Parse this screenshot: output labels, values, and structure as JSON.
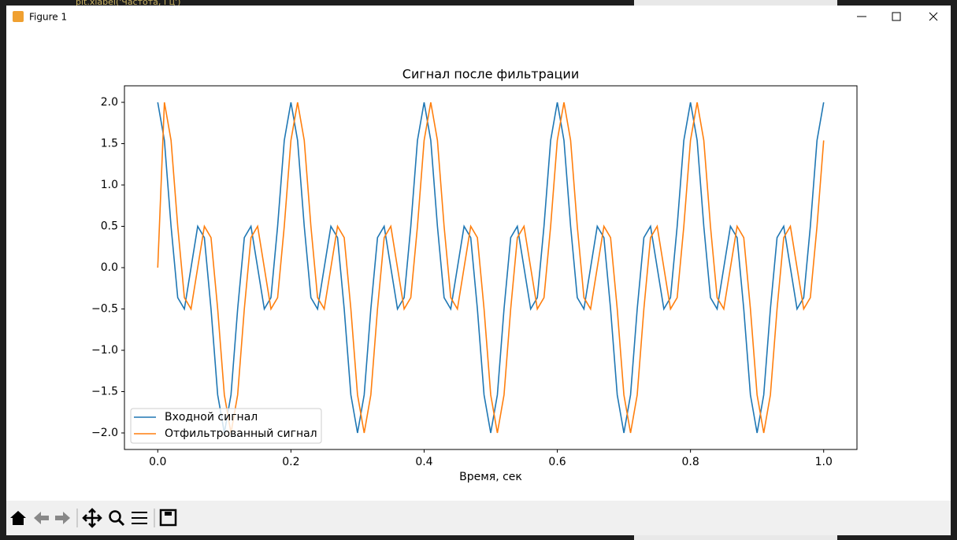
{
  "window": {
    "title": "Figure 1",
    "background_code": "plt.xlabel('Частота, Гц')"
  },
  "chart_data": {
    "type": "line",
    "title": "Сигнал после фильтрации",
    "x_label": "Время, сек",
    "x": [
      0,
      0.01,
      0.02,
      0.03,
      0.04,
      0.05,
      0.06,
      0.07,
      0.08,
      0.09,
      0.1,
      0.11,
      0.12,
      0.13,
      0.14,
      0.15,
      0.16,
      0.17,
      0.18,
      0.19,
      0.2,
      0.21,
      0.22,
      0.23,
      0.24,
      0.25,
      0.26,
      0.27,
      0.28,
      0.29,
      0.3,
      0.31,
      0.32,
      0.33,
      0.34,
      0.35,
      0.36,
      0.37,
      0.38,
      0.39,
      0.4,
      0.41,
      0.42,
      0.43,
      0.44,
      0.45,
      0.46,
      0.47,
      0.48,
      0.49,
      0.5,
      0.51,
      0.52,
      0.53,
      0.54,
      0.55,
      0.56,
      0.57,
      0.58,
      0.59,
      0.6,
      0.61,
      0.62,
      0.63,
      0.64,
      0.65,
      0.66,
      0.67,
      0.68,
      0.69,
      0.7,
      0.71,
      0.72,
      0.73,
      0.74,
      0.75,
      0.76,
      0.77,
      0.78,
      0.79,
      0.8,
      0.81,
      0.82,
      0.83,
      0.84,
      0.85,
      0.86,
      0.87,
      0.88,
      0.89,
      0.9,
      0.91,
      0.92,
      0.93,
      0.94,
      0.95,
      0.96,
      0.97,
      0.98,
      0.99,
      1
    ],
    "series": [
      {
        "name": "Входной сигнал",
        "color": "#1f77b4",
        "values": [
          2,
          1.539,
          0.5,
          -0.363,
          -0.5,
          0,
          0.5,
          0.363,
          -0.5,
          -1.539,
          -2,
          -1.539,
          -0.5,
          0.363,
          0.5,
          0,
          -0.5,
          -0.363,
          0.5,
          1.539,
          2,
          1.539,
          0.5,
          -0.363,
          -0.5,
          0,
          0.5,
          0.363,
          -0.5,
          -1.539,
          -2,
          -1.539,
          -0.5,
          0.363,
          0.5,
          0,
          -0.5,
          -0.363,
          0.5,
          1.539,
          2,
          1.539,
          0.5,
          -0.363,
          -0.5,
          0,
          0.5,
          0.363,
          -0.5,
          -1.539,
          -2,
          -1.539,
          -0.5,
          0.363,
          0.5,
          0,
          -0.5,
          -0.363,
          0.5,
          1.539,
          2,
          1.539,
          0.5,
          -0.363,
          -0.5,
          0,
          0.5,
          0.363,
          -0.5,
          -1.539,
          -2,
          -1.539,
          -0.5,
          0.363,
          0.5,
          0,
          -0.5,
          -0.363,
          0.5,
          1.539,
          2,
          1.539,
          0.5,
          -0.363,
          -0.5,
          0,
          0.5,
          0.363,
          -0.5,
          -1.539,
          -2,
          -1.539,
          -0.5,
          0.363,
          0.5,
          0,
          -0.5,
          -0.363,
          0.5,
          1.539,
          2
        ]
      },
      {
        "name": "Отфильтрованный сигнал",
        "color": "#ff7f0e",
        "values": [
          0,
          2,
          1.539,
          0.5,
          -0.363,
          -0.5,
          0,
          0.5,
          0.363,
          -0.5,
          -1.539,
          -2,
          -1.539,
          -0.5,
          0.363,
          0.5,
          0,
          -0.5,
          -0.363,
          0.5,
          1.539,
          2,
          1.539,
          0.5,
          -0.363,
          -0.5,
          0,
          0.5,
          0.363,
          -0.5,
          -1.539,
          -2,
          -1.539,
          -0.5,
          0.363,
          0.5,
          0,
          -0.5,
          -0.363,
          0.5,
          1.539,
          2,
          1.539,
          0.5,
          -0.363,
          -0.5,
          0,
          0.5,
          0.363,
          -0.5,
          -1.539,
          -2,
          -1.539,
          -0.5,
          0.363,
          0.5,
          0,
          -0.5,
          -0.363,
          0.5,
          1.539,
          2,
          1.539,
          0.5,
          -0.363,
          -0.5,
          0,
          0.5,
          0.363,
          -0.5,
          -1.539,
          -2,
          -1.539,
          -0.5,
          0.363,
          0.5,
          0,
          -0.5,
          -0.363,
          0.5,
          1.539,
          2,
          1.539,
          0.5,
          -0.363,
          -0.5,
          0,
          0.5,
          0.363,
          -0.5,
          -1.539,
          -2,
          -1.539,
          -0.5,
          0.363,
          0.5,
          0,
          -0.5,
          -0.363,
          0.5,
          1.539
        ]
      }
    ],
    "xlim": [
      -0.05,
      1.05
    ],
    "xticks": [
      {
        "value": 0,
        "label": "0.0"
      },
      {
        "value": 0.2,
        "label": "0.2"
      },
      {
        "value": 0.4,
        "label": "0.4"
      },
      {
        "value": 0.6,
        "label": "0.6"
      },
      {
        "value": 0.8,
        "label": "0.8"
      },
      {
        "value": 1,
        "label": "1.0"
      }
    ],
    "ylim": [
      -2.2,
      2.2
    ],
    "yticks": [
      {
        "value": -2,
        "label": "−2.0"
      },
      {
        "value": -1.5,
        "label": "−1.5"
      },
      {
        "value": -1,
        "label": "−1.0"
      },
      {
        "value": -0.5,
        "label": "−0.5"
      },
      {
        "value": 0,
        "label": "0.0"
      },
      {
        "value": 0.5,
        "label": "0.5"
      },
      {
        "value": 1,
        "label": "1.0"
      },
      {
        "value": 1.5,
        "label": "1.5"
      },
      {
        "value": 2,
        "label": "2.0"
      }
    ],
    "grid": false,
    "legend": "lower left"
  }
}
